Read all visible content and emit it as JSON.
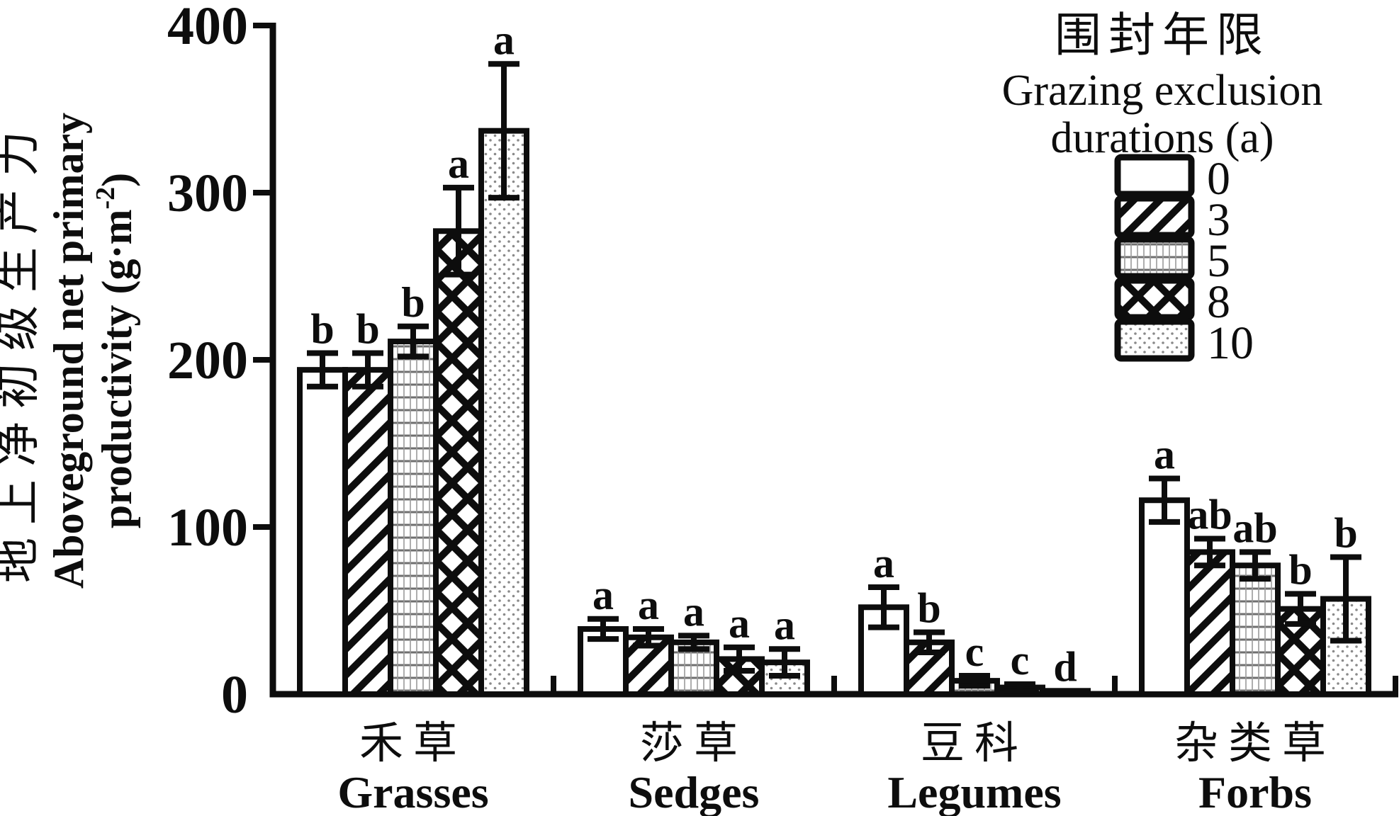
{
  "colors": {
    "ink": "#0d0d0d",
    "background": "#ffffff",
    "grid_pattern_dark": "#6f6f6f",
    "grid_pattern_light": "#9a9a9a",
    "dot_pattern": "#8a8a8a"
  },
  "y_axis": {
    "label_zh": "地上净初级生产力",
    "label_en_line1": "Aboveground net primary",
    "label_en_line2_pre": "productivity (g·m",
    "label_en_sup": "-2",
    "label_en_post": ")",
    "ticks": [
      0,
      100,
      200,
      300,
      400
    ],
    "min": 0,
    "max": 400
  },
  "legend": {
    "title_zh": "围封年限",
    "title_en_line1": "Grazing exclusion",
    "title_en_line2": "durations (a)",
    "items": [
      {
        "label": "0",
        "pattern": "plain"
      },
      {
        "label": "3",
        "pattern": "diag"
      },
      {
        "label": "5",
        "pattern": "grid"
      },
      {
        "label": "8",
        "pattern": "cross"
      },
      {
        "label": "10",
        "pattern": "dots"
      }
    ]
  },
  "chart_data": {
    "type": "bar",
    "title": "",
    "xlabel": "",
    "ylabel": "Aboveground net primary productivity (g·m-2)",
    "ylim": [
      0,
      400
    ],
    "grid": false,
    "legend_position": "top-right",
    "error_bars": true,
    "categories": [
      {
        "zh": "禾草",
        "en": "Grasses"
      },
      {
        "zh": "莎草",
        "en": "Sedges"
      },
      {
        "zh": "豆科",
        "en": "Legumes"
      },
      {
        "zh": "杂类草",
        "en": "Forbs"
      }
    ],
    "series": [
      {
        "name": "0",
        "pattern": "plain",
        "values": [
          194,
          39,
          52,
          116
        ],
        "errors": [
          10,
          6,
          12,
          13
        ],
        "sig_letters": [
          "b",
          "a",
          "a",
          "a"
        ]
      },
      {
        "name": "3",
        "pattern": "diag",
        "values": [
          194,
          34,
          31,
          85
        ],
        "errors": [
          10,
          5,
          6,
          8
        ],
        "sig_letters": [
          "b",
          "a",
          "b",
          "ab"
        ]
      },
      {
        "name": "5",
        "pattern": "grid",
        "values": [
          211,
          31,
          8,
          77
        ],
        "errors": [
          9,
          4,
          3,
          8
        ],
        "sig_letters": [
          "b",
          "a",
          "c",
          "ab"
        ]
      },
      {
        "name": "8",
        "pattern": "cross",
        "values": [
          277,
          21,
          4,
          51
        ],
        "errors": [
          26,
          7,
          2,
          9
        ],
        "sig_letters": [
          "a",
          "a",
          "c",
          "b"
        ]
      },
      {
        "name": "10",
        "pattern": "dots",
        "values": [
          337,
          19,
          2,
          57
        ],
        "errors": [
          40,
          8,
          0,
          25
        ],
        "sig_letters": [
          "a",
          "a",
          "d",
          "b"
        ]
      }
    ]
  }
}
